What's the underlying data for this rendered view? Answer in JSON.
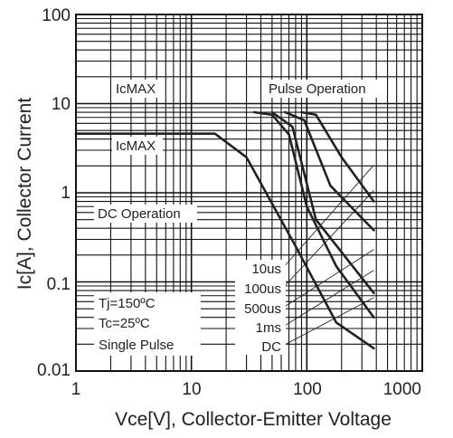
{
  "chart_data": {
    "type": "line",
    "xlabel": "Vce[V], Collector-Emitter Voltage",
    "ylabel": "Ic[A], Collector Current",
    "x_scale": "log",
    "y_scale": "log",
    "xlim": [
      1,
      1000
    ],
    "ylim": [
      0.01,
      100
    ],
    "x_ticks": [
      "1",
      "10",
      "100",
      "1000"
    ],
    "y_ticks": [
      "100",
      "10",
      "1",
      "0.1",
      "0.01"
    ],
    "grid": true,
    "annotations": {
      "icmax_pulse": "IcMAX",
      "icmax_dc": "IcMAX",
      "pulse_operation": "Pulse Operation",
      "dc_operation": "DC Operation",
      "tj": "Tj=150ºC",
      "tc": "Tc=25ºC",
      "single_pulse": "Single Pulse"
    },
    "series": [
      {
        "name": "10us",
        "x": [
          90,
          120,
          200,
          380
        ],
        "y": [
          8,
          7.5,
          2.5,
          0.8
        ]
      },
      {
        "name": "100us",
        "x": [
          65,
          95,
          160,
          380
        ],
        "y": [
          8,
          6.5,
          1.2,
          0.38
        ]
      },
      {
        "name": "500us",
        "x": [
          50,
          75,
          120,
          380
        ],
        "y": [
          8,
          5.5,
          0.5,
          0.075
        ]
      },
      {
        "name": "1ms",
        "x": [
          35,
          50,
          70,
          100,
          180,
          380
        ],
        "y": [
          8,
          7.5,
          4.5,
          0.7,
          0.15,
          0.04
        ]
      },
      {
        "name": "DC",
        "x": [
          1,
          16,
          30,
          80,
          180,
          380
        ],
        "y": [
          4.6,
          4.6,
          2.5,
          0.25,
          0.035,
          0.018
        ]
      }
    ],
    "colors": {
      "curve": "#222222",
      "grid": "#111111",
      "background": "#ffffff"
    }
  }
}
